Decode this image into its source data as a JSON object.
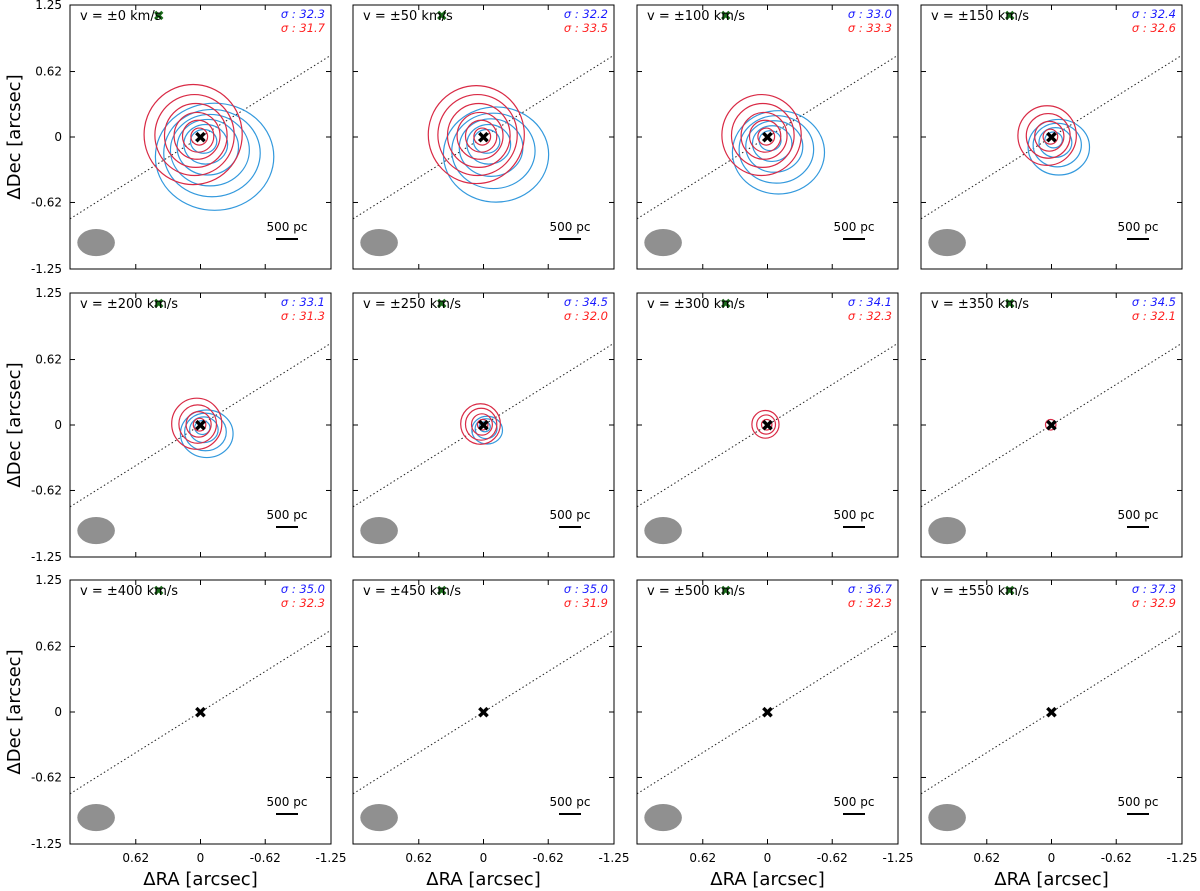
{
  "chart_data": {
    "type": "contour",
    "xlabel": "ΔRA [arcsec]",
    "ylabel": "ΔDec [arcsec]",
    "xlim": [
      1.25,
      -1.25
    ],
    "ylim": [
      -1.25,
      1.25
    ],
    "x_ticks": [
      "0.62",
      "0",
      "-0.62",
      "-1.25"
    ],
    "x_tick_values": [
      0.62,
      0,
      -0.62,
      -1.25
    ],
    "y_ticks": [
      "1.25",
      "0.62",
      "0",
      "-0.62",
      "-1.25"
    ],
    "y_tick_values": [
      1.25,
      0.62,
      0,
      -0.62,
      -1.25
    ],
    "scalebar_label": "500 pc",
    "beam": {
      "x": 1.0,
      "y": -1.0,
      "major": 0.18,
      "minor": 0.13,
      "color": "#909090"
    },
    "center_marker": {
      "x": 0,
      "y": 0,
      "symbol": "✖"
    },
    "offset_marker": {
      "x": 0.4,
      "y": 1.15,
      "symbol": "✖",
      "color": "#1a6b1a"
    },
    "axis_line": {
      "slope": 0.62,
      "style": "dotted"
    },
    "colors": {
      "blue": "#3399dd",
      "red": "#d92a45",
      "sigma_blue": "#1a1aff",
      "sigma_red": "#ff2020"
    },
    "panels": [
      {
        "label": "v = ±0 km/s",
        "sigma_blue": "σ : 32.3",
        "sigma_red": "σ : 31.7",
        "blue_radii": [
          0.12,
          0.2,
          0.28,
          0.36,
          0.44,
          0.54
        ],
        "red_radii": [
          0.08,
          0.15,
          0.22,
          0.3,
          0.38,
          0.47
        ]
      },
      {
        "label": "v = ±50 km/s",
        "sigma_blue": "σ : 32.2",
        "sigma_red": "σ : 33.5",
        "blue_radii": [
          0.12,
          0.2,
          0.29,
          0.38,
          0.48
        ],
        "red_radii": [
          0.08,
          0.15,
          0.22,
          0.3,
          0.38,
          0.46
        ]
      },
      {
        "label": "v = ±100 km/s",
        "sigma_blue": "σ : 33.0",
        "sigma_red": "σ : 33.3",
        "blue_radii": [
          0.1,
          0.18,
          0.26,
          0.34,
          0.42
        ],
        "red_radii": [
          0.08,
          0.15,
          0.22,
          0.3,
          0.38
        ]
      },
      {
        "label": "v = ±150 km/s",
        "sigma_blue": "σ : 32.4",
        "sigma_red": "σ : 32.6",
        "blue_radii": [
          0.08,
          0.15,
          0.22,
          0.28
        ],
        "red_radii": [
          0.07,
          0.14,
          0.21,
          0.28
        ]
      },
      {
        "label": "v = ±200 km/s",
        "sigma_blue": "σ : 33.1",
        "sigma_red": "σ : 31.3",
        "blue_radii": [
          0.07,
          0.13,
          0.19,
          0.24
        ],
        "red_radii": [
          0.06,
          0.12,
          0.18,
          0.24
        ]
      },
      {
        "label": "v = ±250 km/s",
        "sigma_blue": "σ : 34.5",
        "sigma_red": "σ : 32.0",
        "blue_radii": [
          0.05,
          0.1,
          0.14
        ],
        "red_radii": [
          0.05,
          0.1,
          0.15,
          0.19
        ]
      },
      {
        "label": "v = ±300 km/s",
        "sigma_blue": "σ : 34.1",
        "sigma_red": "σ : 32.3",
        "blue_radii": [],
        "red_radii": [
          0.05,
          0.09,
          0.13
        ]
      },
      {
        "label": "v = ±350 km/s",
        "sigma_blue": "σ : 34.5",
        "sigma_red": "σ : 32.1",
        "blue_radii": [],
        "red_radii": [
          0.05
        ]
      },
      {
        "label": "v = ±400 km/s",
        "sigma_blue": "σ : 35.0",
        "sigma_red": "σ : 32.3",
        "blue_radii": [],
        "red_radii": []
      },
      {
        "label": "v = ±450 km/s",
        "sigma_blue": "σ : 35.0",
        "sigma_red": "σ : 31.9",
        "blue_radii": [],
        "red_radii": []
      },
      {
        "label": "v = ±500 km/s",
        "sigma_blue": "σ : 36.7",
        "sigma_red": "σ : 32.3",
        "blue_radii": [],
        "red_radii": []
      },
      {
        "label": "v = ±550 km/s",
        "sigma_blue": "σ : 37.3",
        "sigma_red": "σ : 32.9",
        "blue_radii": [],
        "red_radii": []
      }
    ]
  }
}
